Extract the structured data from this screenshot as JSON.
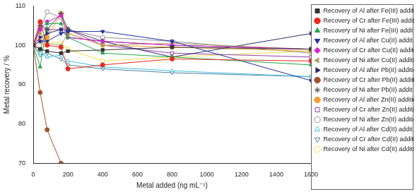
{
  "chart_data": {
    "type": "line",
    "x_label": "Metal added (ng mL⁻¹)",
    "y_label": "Metal recovery / %",
    "x": [
      0,
      40,
      80,
      160,
      200,
      400,
      800,
      1600
    ],
    "xlim": [
      0,
      1600
    ],
    "xticks": [
      0,
      200,
      400,
      600,
      800,
      1000,
      1200,
      1400,
      1600
    ],
    "ylim": [
      70,
      110
    ],
    "yticks": [
      70,
      80,
      90,
      100,
      110
    ],
    "grid": false,
    "legend": "right",
    "series": [
      {
        "name": "Recovery of Al after Fe(III) addition",
        "color": "#333333",
        "marker": "square",
        "values": [
          100,
          99,
          98.5,
          98,
          98.5,
          98.8,
          99.5,
          99
        ]
      },
      {
        "name": "Recovery of Cr after Fe(III) addition",
        "color": "#e8291c",
        "marker": "circle",
        "values": [
          100,
          106,
          100,
          99.5,
          94,
          95,
          96.5,
          96
        ]
      },
      {
        "name": "Recovery of Ni after Fe(III) addition",
        "color": "#22a84a",
        "marker": "triangle",
        "values": [
          100,
          94.5,
          105.5,
          105.5,
          102,
          98,
          97,
          95
        ]
      },
      {
        "name": "Recovery of Al after Cu(II) addition",
        "color": "#1f2fa0",
        "marker": "triangle-down",
        "values": [
          100,
          101,
          101,
          103,
          103.5,
          103.5,
          101,
          91
        ]
      },
      {
        "name": "Recovery of Cr after Cu(II) addition",
        "color": "#e020d0",
        "marker": "diamond",
        "values": [
          100,
          104,
          106,
          107.5,
          102,
          101,
          100,
          99
        ]
      },
      {
        "name": "Recovery of Ni after Cu(II) addition",
        "color": "#b0a070",
        "marker": "triangle-left",
        "values": [
          100,
          103,
          100.5,
          100,
          103,
          100,
          100.5,
          99
        ]
      },
      {
        "name": "Recovery of Al after Pb(II) addition",
        "color": "#2a2a70",
        "marker": "triangle-right",
        "values": [
          100,
          102,
          103,
          104,
          102,
          101,
          97,
          103
        ]
      },
      {
        "name": "Recovery of Cr after Pb(II) addition",
        "color": "#a0522d",
        "marker": "circle",
        "values": [
          100,
          88,
          78.5,
          70,
          null,
          null,
          null,
          null
        ]
      },
      {
        "name": "Recovery of Ni after Pb(II) addition",
        "color": "#404050",
        "marker": "star",
        "values": [
          100,
          105,
          104,
          108,
          104,
          101,
          100,
          99
        ]
      },
      {
        "name": "Recovery of Al after Zn(II) addition",
        "color": "#f0a030",
        "marker": "circle",
        "values": [
          100,
          101,
          102,
          108,
          103,
          100,
          99.5,
          98.5
        ]
      },
      {
        "name": "Recovery of Cr after Zn(II) addition",
        "color": "#9040b0",
        "marker": "open-square",
        "values": [
          100,
          99,
          104,
          104,
          104,
          100,
          98,
          97
        ]
      },
      {
        "name": "Recovery of Ni after Zn(II) addition",
        "color": "#909090",
        "marker": "open-circle",
        "values": [
          100,
          104,
          108.5,
          107,
          104,
          102,
          101,
          98
        ]
      },
      {
        "name": "Recovery of Al after Cd(II) addition",
        "color": "#40c0e0",
        "marker": "open-triangle",
        "values": [
          100,
          98,
          97,
          97.5,
          96,
          94.5,
          93.5,
          92
        ]
      },
      {
        "name": "Recovery of Cr after Cd(II) addition",
        "color": "#5080a0",
        "marker": "open-triangle-down",
        "values": [
          100,
          97.5,
          98,
          96.5,
          95,
          94,
          93,
          92
        ]
      },
      {
        "name": "Recovery of Ni after Cd(II) addition",
        "color": "#f0e040",
        "marker": "open-circle",
        "values": [
          100,
          99,
          101,
          100.5,
          99,
          96,
          97,
          98.5
        ]
      }
    ]
  }
}
